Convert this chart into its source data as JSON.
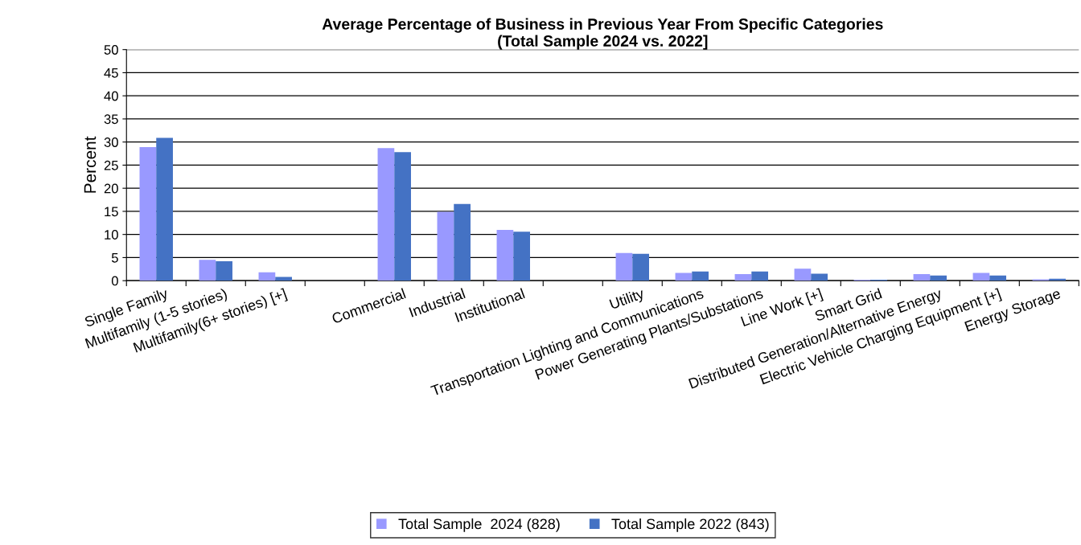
{
  "chart_data": {
    "type": "bar",
    "title": "Average Percentage of Business in Previous Year From Specific Categories\n(Total Sample 2024 vs. 2022]",
    "ylabel": "Percent",
    "categories": [
      "Single Family",
      "Multifamily (1-5 stories)",
      "Multifamily(6+ stories) [+]",
      null,
      "Commercial",
      "Industrial",
      "Institutional",
      null,
      "Utility",
      "Transportation Lighting and Communications",
      "Power Generating Plants/Substations",
      "Line Work [+]",
      "Smart Grid",
      "Distributed Generation/Alternative Energy",
      "Electric Vehicle Charging Equipment [+]",
      "Energy Storage"
    ],
    "series": [
      {
        "name": "Total Sample  2024 (828)",
        "color": "#9999ff",
        "values": [
          28.9,
          4.5,
          1.8,
          null,
          28.7,
          14.9,
          11.0,
          null,
          6.0,
          1.7,
          1.4,
          2.6,
          0.2,
          1.4,
          1.7,
          0.3
        ]
      },
      {
        "name": "Total Sample 2022 (843)",
        "color": "#4472c4",
        "values": [
          30.9,
          4.2,
          0.8,
          null,
          27.8,
          16.6,
          10.6,
          null,
          5.8,
          2.0,
          2.0,
          1.5,
          0.2,
          1.1,
          1.1,
          0.4
        ]
      }
    ],
    "ylim": [
      0,
      50
    ],
    "yticks": [
      0,
      5,
      10,
      15,
      20,
      25,
      30,
      35,
      40,
      45,
      50
    ],
    "grid": "y",
    "legend": "bottom"
  }
}
